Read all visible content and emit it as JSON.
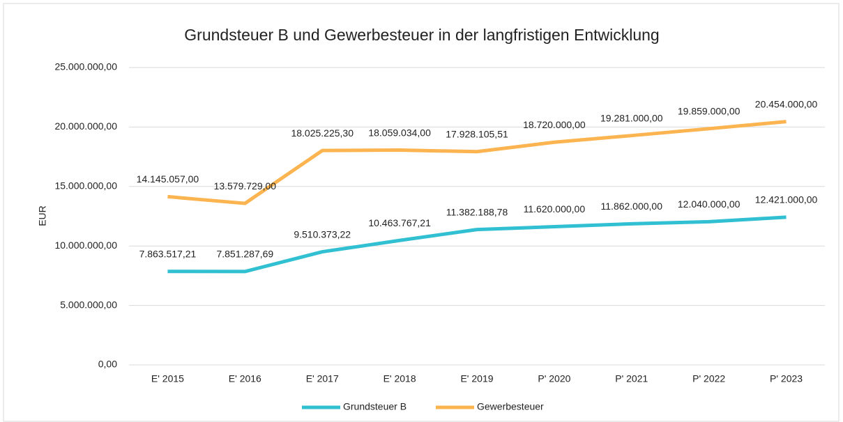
{
  "chart_data": {
    "type": "line",
    "title": "Grundsteuer B und Gewerbesteuer in der langfristigen Entwicklung",
    "y_label": "EUR",
    "categories": [
      "E' 2015",
      "E' 2016",
      "E' 2017",
      "E' 2018",
      "E' 2019",
      "P' 2020",
      "P' 2021",
      "P' 2022",
      "P' 2023"
    ],
    "series": [
      {
        "name": "Grundsteuer B",
        "color": "#31bfd2",
        "values": [
          7863517.21,
          7851287.69,
          9510373.22,
          10463767.21,
          11382188.78,
          11620000,
          11862000,
          12040000,
          12421000
        ],
        "value_labels": [
          "7.863.517,21",
          "7.851.287,69",
          "9.510.373,22",
          "10.463.767,21",
          "11.382.188,78",
          "11.620.000,00",
          "11.862.000,00",
          "12.040.000,00",
          "12.421.000,00"
        ]
      },
      {
        "name": "Gewerbesteuer",
        "color": "#fbb450",
        "values": [
          14145057,
          13579729,
          18025225.3,
          18059034,
          17928105.51,
          18720000,
          19281000,
          19859000,
          20454000
        ],
        "value_labels": [
          "14.145.057,00",
          "13.579.729,00",
          "18.025.225,30",
          "18.059.034,00",
          "17.928.105,51",
          "18.720.000,00",
          "19.281.000,00",
          "19.859.000,00",
          "20.454.000,00"
        ]
      }
    ],
    "ylim": [
      0,
      25000000
    ],
    "yticks": [
      {
        "value": 0,
        "label": "0,00"
      },
      {
        "value": 5000000,
        "label": "5.000.000,00"
      },
      {
        "value": 10000000,
        "label": "10.000.000,00"
      },
      {
        "value": 15000000,
        "label": "15.000.000,00"
      },
      {
        "value": 20000000,
        "label": "20.000.000,00"
      },
      {
        "value": 25000000,
        "label": "25.000.000,00"
      }
    ],
    "grid": true,
    "legend": "bottom"
  }
}
